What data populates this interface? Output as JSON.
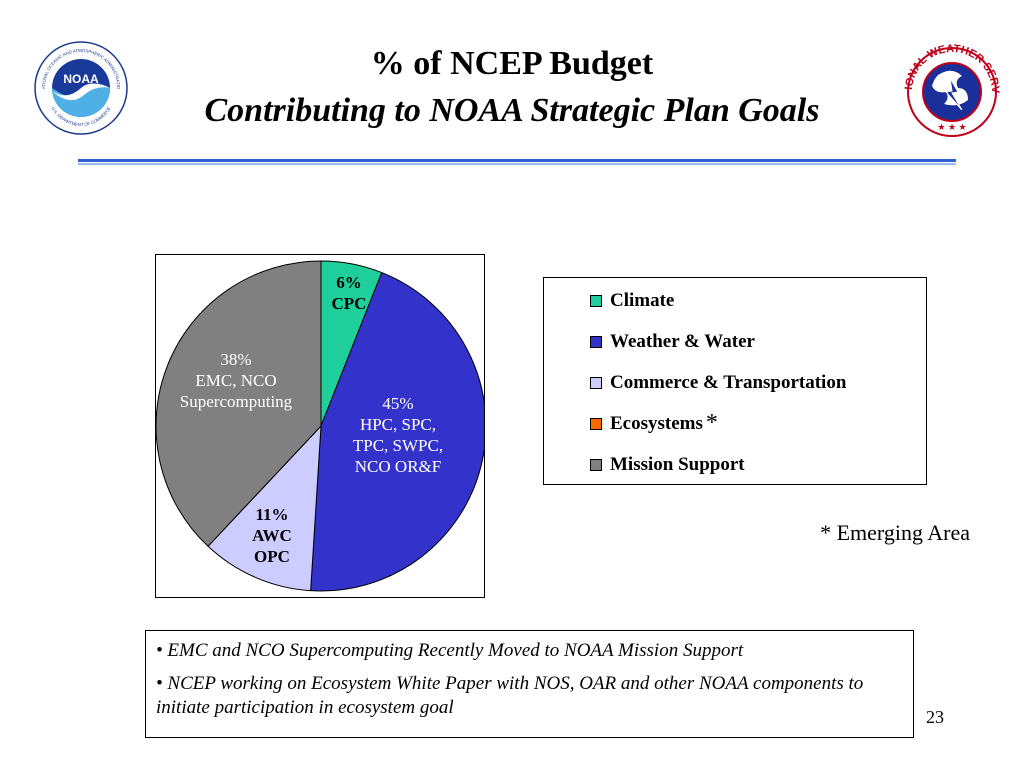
{
  "slide": {
    "title_line1": "% of NCEP Budget",
    "title_line2": "Contributing to NOAA Strategic Plan Goals",
    "emerging_note": "* Emerging Area",
    "notes": [
      "• EMC and NCO Supercomputing Recently Moved to NOAA Mission Support",
      "• NCEP working on Ecosystem White Paper with NOS, OAR and other NOAA components to initiate participation in ecosystem goal"
    ],
    "page_number": "23",
    "noaa_logo_text": "NOAA",
    "noaa_ring_text_top": "NATIONAL OCEANIC AND ATMOSPHERIC ADMINISTRATION",
    "noaa_ring_text_bottom": "U.S. DEPARTMENT OF COMMERCE",
    "nws_ring_text_top": "NATIONAL WEATHER SERVICE"
  },
  "colors": {
    "climate": "#1fcf9b",
    "weather_water": "#3333cc",
    "commerce_transportation": "#ccccff",
    "ecosystems": "#ff6a00",
    "mission_support": "#808080",
    "rule": "#2f5fd0"
  },
  "chart_data": {
    "type": "pie",
    "legend_position": "right",
    "slices": [
      {
        "category": "Climate",
        "value": 6,
        "label_lines": [
          "6%",
          "CPC"
        ],
        "color": "#1fcf9b",
        "bold": true,
        "label_color": "#000000"
      },
      {
        "category": "Weather & Water",
        "value": 45,
        "label_lines": [
          "45%",
          "HPC, SPC,",
          "TPC, SWPC,",
          "NCO OR&F"
        ],
        "color": "#3333cc",
        "bold": false,
        "label_color": "#ffffff"
      },
      {
        "category": "Commerce & Transportation",
        "value": 11,
        "label_lines": [
          "11%",
          "AWC",
          "OPC"
        ],
        "color": "#ccccff",
        "bold": true,
        "label_color": "#000000"
      },
      {
        "category": "Ecosystems",
        "value": 0,
        "label_lines": [],
        "color": "#ff6a00",
        "bold": false,
        "label_color": "#000000"
      },
      {
        "category": "Mission Support",
        "value": 38,
        "label_lines": [
          "38%",
          "EMC, NCO",
          "Supercomputing"
        ],
        "color": "#808080",
        "bold": false,
        "label_color": "#ffffff"
      }
    ],
    "legend": [
      {
        "label": "Climate",
        "color": "#1fcf9b",
        "starred": false
      },
      {
        "label": "Weather & Water",
        "color": "#3333cc",
        "starred": false
      },
      {
        "label": "Commerce & Transportation",
        "color": "#ccccff",
        "starred": false
      },
      {
        "label": "Ecosystems",
        "color": "#ff6a00",
        "starred": true
      },
      {
        "label": "Mission Support",
        "color": "#808080",
        "starred": false
      }
    ],
    "legend_star": "*"
  }
}
